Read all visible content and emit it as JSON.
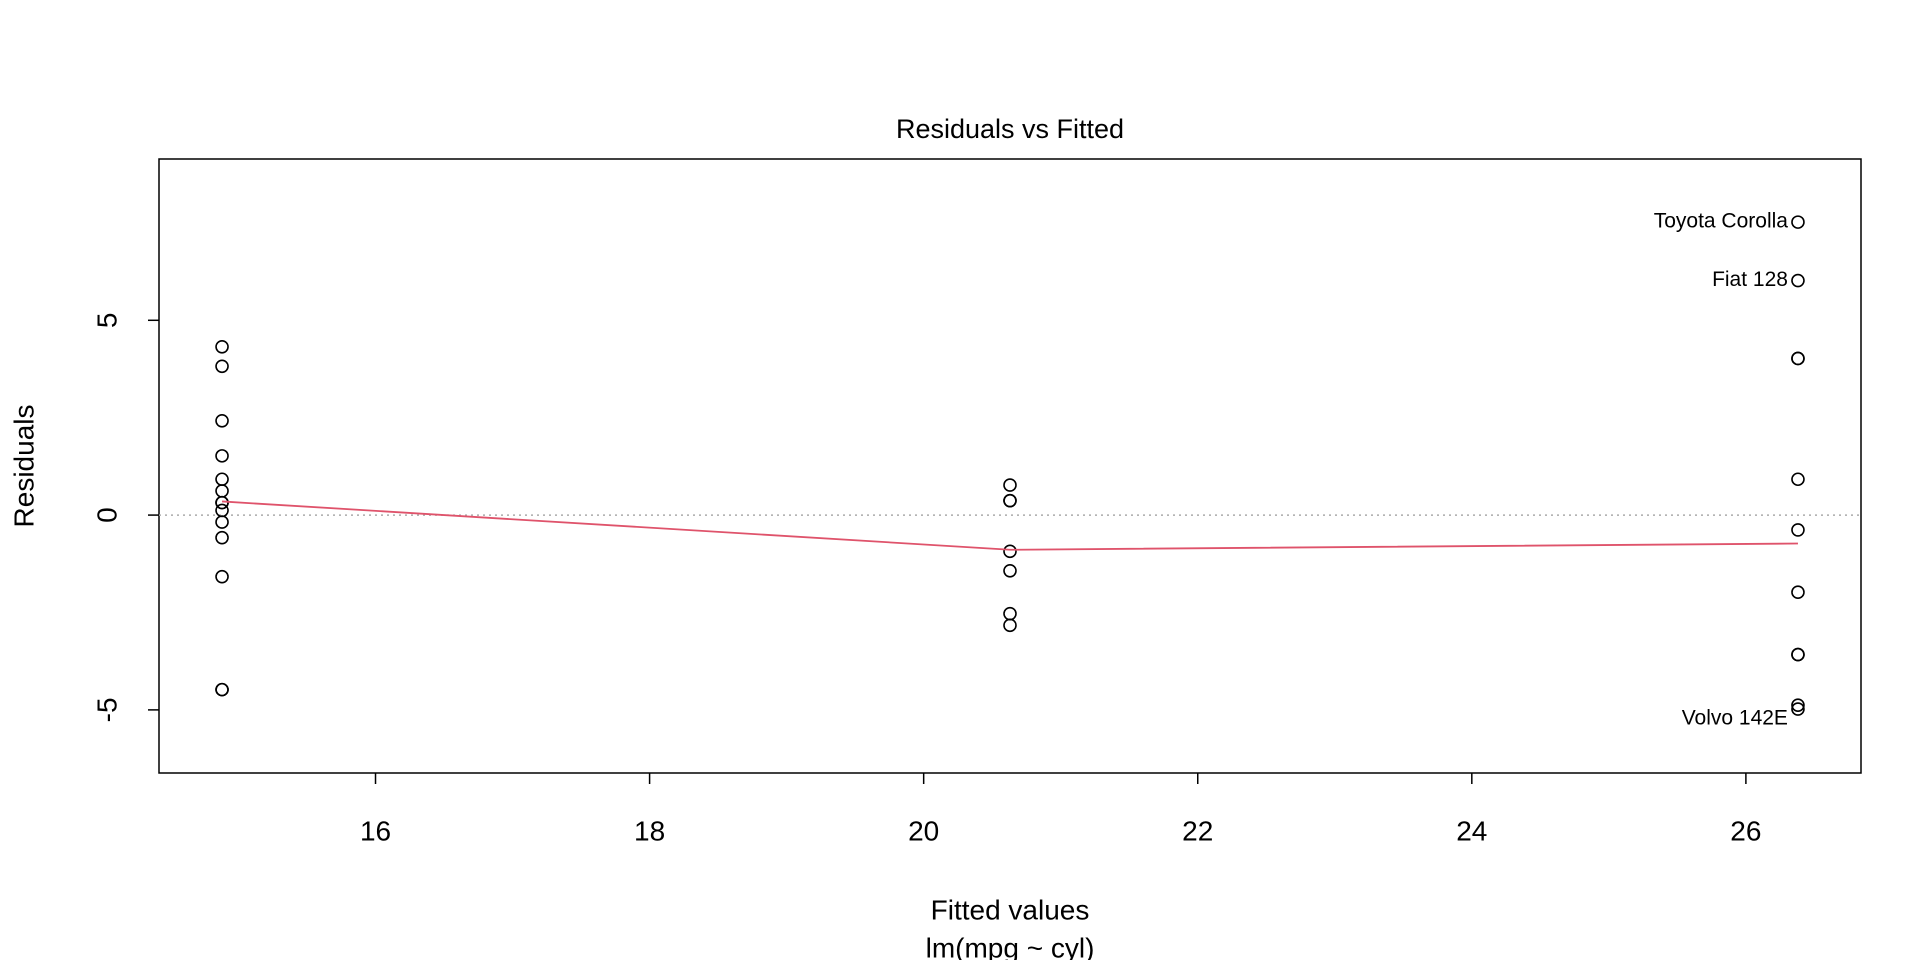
{
  "chart_data": {
    "type": "scatter",
    "title": "Residuals vs Fitted",
    "x_label": "Fitted values",
    "subtitle": "lm(mpg ~ cyl)",
    "y_label": "Residuals",
    "x": [
      20.63,
      20.63,
      26.38,
      20.63,
      14.88,
      20.63,
      14.88,
      26.38,
      26.38,
      20.63,
      20.63,
      14.88,
      14.88,
      14.88,
      14.88,
      14.88,
      14.88,
      26.38,
      26.38,
      26.38,
      26.38,
      14.88,
      14.88,
      14.88,
      14.88,
      26.38,
      26.38,
      26.38,
      14.88,
      20.63,
      14.88,
      26.38
    ],
    "values": [
      0.37,
      0.37,
      -3.58,
      0.77,
      3.82,
      -2.53,
      -0.58,
      -1.98,
      -3.58,
      -1.43,
      -2.83,
      1.52,
      2.42,
      0.32,
      -4.48,
      -4.48,
      -0.18,
      6.02,
      4.02,
      7.52,
      -4.88,
      0.62,
      0.32,
      -1.58,
      4.32,
      0.92,
      -0.38,
      4.02,
      0.92,
      -0.93,
      0.12,
      -4.98
    ],
    "point_labels": [
      null,
      null,
      null,
      null,
      null,
      null,
      null,
      null,
      null,
      null,
      null,
      null,
      null,
      null,
      null,
      null,
      null,
      "Fiat 128",
      null,
      "Toyota Corolla",
      null,
      null,
      null,
      null,
      null,
      null,
      null,
      null,
      null,
      null,
      null,
      "Volvo 142E"
    ],
    "smooth": {
      "x": [
        14.88,
        20.63,
        26.38
      ],
      "y": [
        0.35,
        -0.89,
        -0.73
      ],
      "color": "#df536b"
    },
    "reference_line": 0,
    "xlim": [
      14.42,
      26.84
    ],
    "ylim": [
      -6.62,
      9.14
    ],
    "xticks": [
      16,
      18,
      20,
      22,
      24,
      26
    ],
    "yticks": [
      -5,
      0,
      5
    ]
  }
}
